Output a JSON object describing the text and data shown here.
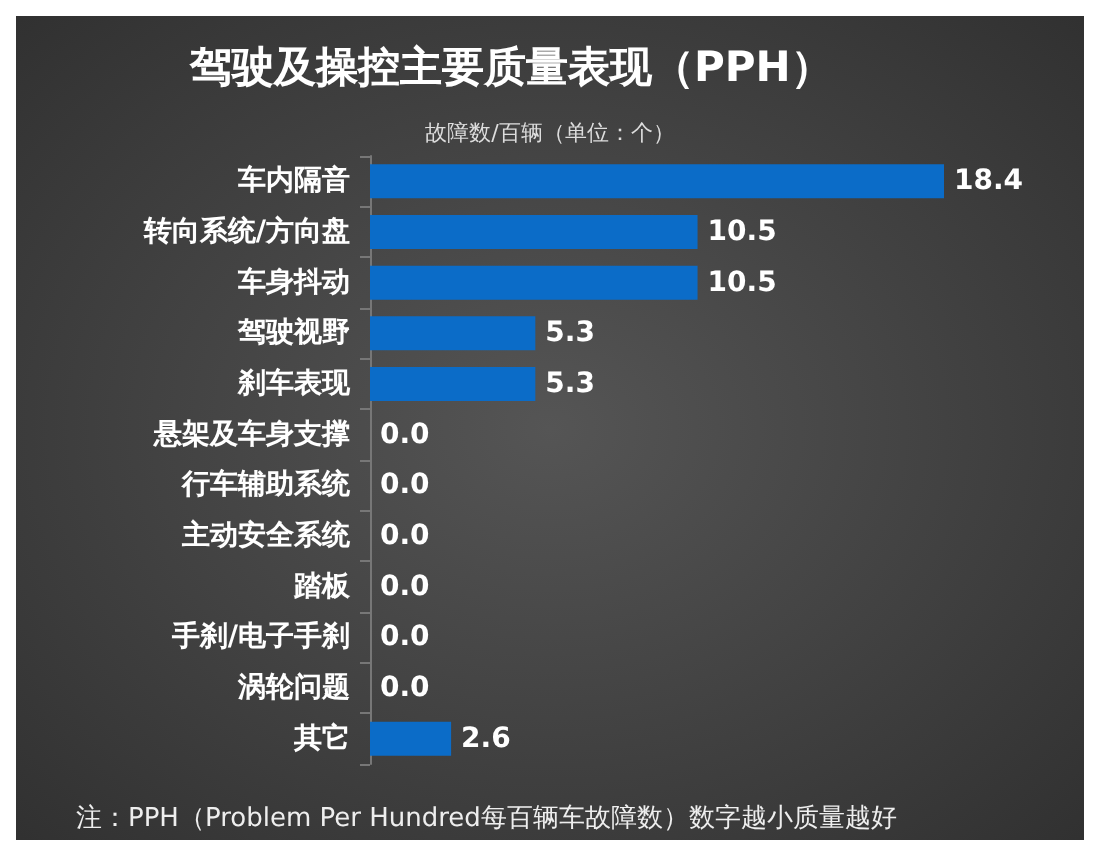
{
  "chart_data": {
    "type": "bar",
    "orientation": "horizontal",
    "title": "驾驶及操控主要质量表现（PPH）",
    "subtitle": "故障数/百辆（单位：个）",
    "categories": [
      "车内隔音",
      "转向系统/方向盘",
      "车身抖动",
      "驾驶视野",
      "刹车表现",
      "悬架及车身支撑",
      "行车辅助系统",
      "主动安全系统",
      "踏板",
      "手刹/电子手刹",
      "涡轮问题",
      "其它"
    ],
    "values": [
      18.4,
      10.5,
      10.5,
      5.3,
      5.3,
      0,
      0,
      0,
      0,
      0,
      0,
      2.6
    ],
    "value_labels": [
      "18.4",
      "10.5",
      "10.5",
      "5.3",
      "5.3",
      "0.0",
      "0.0",
      "0.0",
      "0.0",
      "0.0",
      "0.0",
      "2.6"
    ],
    "color": "#0b6cc8",
    "annotations": [
      "注：PPH（Problem Per Hundred每百辆车故障数）数字越小质量越好"
    ]
  }
}
